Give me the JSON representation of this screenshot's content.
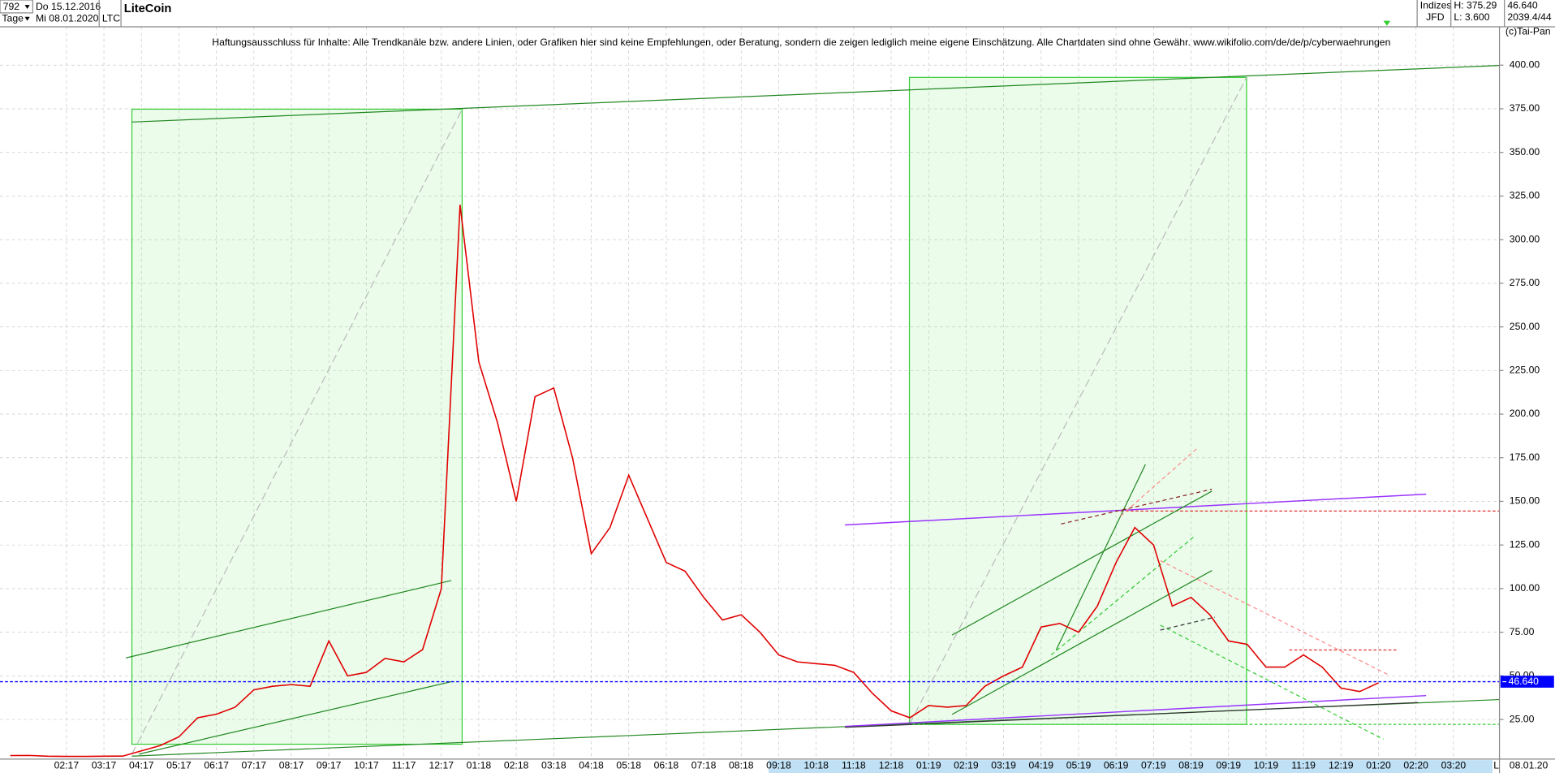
{
  "header": {
    "count": "792",
    "start_date": "Do 15.12.2016",
    "period": "Tage",
    "end_date": "Mi 08.01.2020",
    "name": "LiteCoin",
    "symbol": "LTC",
    "market": "Indizes",
    "broker": "JFD",
    "high": "H: 375.29",
    "low": "L: 3.600",
    "last": "46.640",
    "volume": "2039.4/44",
    "copyright": "(c)Tai-Pan",
    "disclaimer": "Haftungsausschluss für Inhalte: Alle Trendkanäle bzw. andere Linien, oder Grafiken hier sind keine Empfehlungen, oder Beratung, sondern die zeigen lediglich meine eigene Einschätzung. Alle Chartdaten sind ohne Gewähr.  www.wikifolio.com/de/de/p/cyberwaehrungen",
    "footer_date": "08.01.20",
    "scale_mode": "L"
  },
  "chart_data": {
    "type": "line",
    "categories": [
      null,
      null,
      null,
      "02:17",
      null,
      "03:17",
      null,
      "04:17",
      null,
      "05:17",
      null,
      "06:17",
      null,
      "07:17",
      null,
      "08:17",
      null,
      "09:17",
      null,
      "10:17",
      null,
      "11:17",
      null,
      "12:17",
      null,
      "01:18",
      null,
      "02:18",
      null,
      "03:18",
      null,
      "04:18",
      null,
      "05:18",
      null,
      "06:18",
      null,
      "07:18",
      null,
      "08:18",
      null,
      "09:18",
      null,
      "10:18",
      null,
      "11:18",
      null,
      "12:18",
      null,
      "01:19",
      null,
      "02:19",
      null,
      "03:19",
      null,
      "04:19",
      null,
      "05:19",
      null,
      "06:19",
      null,
      "07:19",
      null,
      "08:19",
      null,
      "09:19",
      null,
      "10:19",
      null,
      "11:19",
      null,
      "12:19",
      null,
      "01:20",
      null,
      "02:20",
      null,
      "03:20"
    ],
    "series": [
      {
        "name": "LiteCoin",
        "color": "#e00000",
        "values": [
          4.3,
          4.4,
          3.9,
          3.8,
          3.8,
          3.9,
          4.0,
          7,
          10,
          15,
          26,
          28,
          32,
          42,
          44,
          45,
          44,
          70,
          50,
          52,
          60,
          58,
          65,
          100,
          320,
          230,
          195,
          150,
          210,
          215,
          175,
          120,
          135,
          165,
          140,
          115,
          110,
          95,
          82,
          85,
          75,
          62,
          58,
          57,
          56,
          52,
          40,
          30,
          26,
          33,
          32,
          33,
          44,
          50,
          55,
          78,
          80,
          75,
          90,
          115,
          135,
          125,
          90,
          95,
          85,
          70,
          68,
          55,
          55,
          62,
          55,
          43,
          41,
          46,
          null,
          null,
          null,
          null
        ]
      }
    ],
    "ylim": [
      0,
      422
    ],
    "yticks": [
      {
        "value": 25,
        "label": "25.00"
      },
      {
        "value": 50,
        "label": "50.00"
      },
      {
        "value": 75,
        "label": "75.00"
      },
      {
        "value": 100,
        "label": "100.00"
      },
      {
        "value": 125,
        "label": "125.00"
      },
      {
        "value": 150,
        "label": "150.00"
      },
      {
        "value": 175,
        "label": "175.00"
      },
      {
        "value": 200,
        "label": "200.00"
      },
      {
        "value": 225,
        "label": "225.00"
      },
      {
        "value": 250,
        "label": "250.00"
      },
      {
        "value": 275,
        "label": "275.00"
      },
      {
        "value": 300,
        "label": "300.00"
      },
      {
        "value": 325,
        "label": "325.00"
      },
      {
        "value": 350,
        "label": "350.00"
      },
      {
        "value": 375,
        "label": "375.00"
      },
      {
        "value": 400,
        "label": "400.00"
      }
    ],
    "price_line": {
      "value": 46.64,
      "label": "46.640",
      "color": "#0000ff"
    },
    "grid": true
  }
}
